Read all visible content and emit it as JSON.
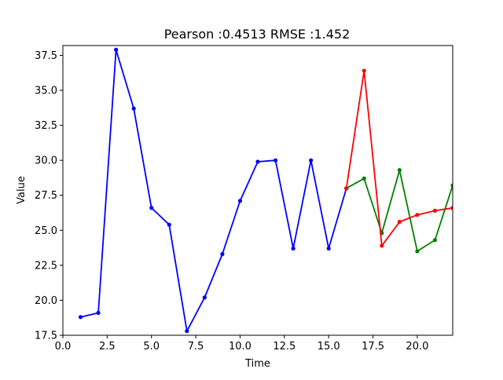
{
  "chart_data": {
    "type": "line",
    "title": "Pearson :0.4513  RMSE :1.452",
    "xlabel": "Time",
    "ylabel": "Value",
    "xlim": [
      0,
      22
    ],
    "ylim": [
      17.5,
      38.2
    ],
    "xticks": [
      0.0,
      2.5,
      5.0,
      7.5,
      10.0,
      12.5,
      15.0,
      17.5,
      20.0
    ],
    "xtick_labels": [
      "0.0",
      "2.5",
      "5.0",
      "7.5",
      "10.0",
      "12.5",
      "15.0",
      "17.5",
      "20.0"
    ],
    "yticks": [
      17.5,
      20.0,
      22.5,
      25.0,
      27.5,
      30.0,
      32.5,
      35.0,
      37.5
    ],
    "ytick_labels": [
      "17.5",
      "20.0",
      "22.5",
      "25.0",
      "27.5",
      "30.0",
      "32.5",
      "35.0",
      "37.5"
    ],
    "grid": false,
    "series": [
      {
        "color": "#0000ff",
        "x": [
          1,
          2,
          3,
          4,
          5,
          6,
          7,
          8,
          9,
          10,
          11,
          12,
          13,
          14,
          15,
          16
        ],
        "y": [
          18.8,
          19.1,
          37.9,
          33.7,
          26.6,
          25.4,
          17.8,
          20.2,
          23.3,
          27.1,
          29.9,
          30.0,
          23.7,
          30.0,
          23.7,
          28.0
        ]
      },
      {
        "color": "#008000",
        "x": [
          16,
          17,
          18,
          19,
          20,
          21,
          22
        ],
        "y": [
          28.0,
          28.7,
          24.8,
          29.3,
          23.5,
          24.3,
          28.2
        ]
      },
      {
        "color": "#ff0000",
        "x": [
          16,
          17,
          18,
          19,
          20,
          21,
          22
        ],
        "y": [
          28.0,
          36.4,
          23.9,
          25.6,
          26.1,
          26.4,
          26.6
        ]
      }
    ]
  }
}
